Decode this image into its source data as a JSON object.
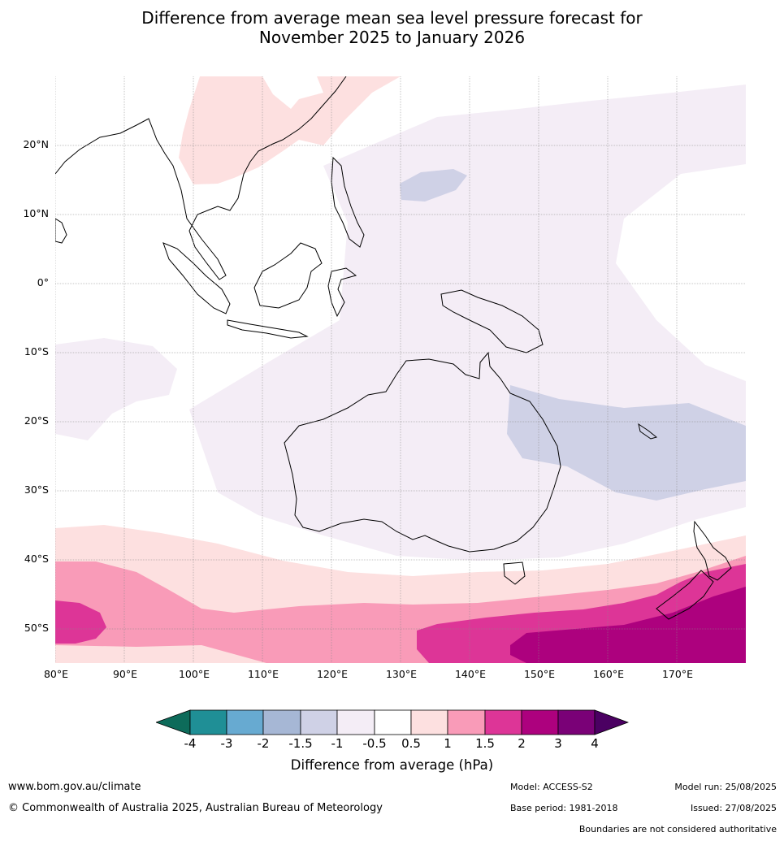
{
  "title": {
    "line1": "Difference from average mean sea level pressure forecast for",
    "line2": "November 2025 to January 2026"
  },
  "map": {
    "lon_range": [
      80,
      180
    ],
    "lat_range": [
      -55,
      30
    ],
    "lat_ticks": [
      {
        "value": 20,
        "label": "20°N"
      },
      {
        "value": 10,
        "label": "10°N"
      },
      {
        "value": 0,
        "label": "0°"
      },
      {
        "value": -10,
        "label": "10°S"
      },
      {
        "value": -20,
        "label": "20°S"
      },
      {
        "value": -30,
        "label": "30°S"
      },
      {
        "value": -40,
        "label": "40°S"
      },
      {
        "value": -50,
        "label": "50°S"
      }
    ],
    "lon_ticks": [
      {
        "value": 80,
        "label": "80°E"
      },
      {
        "value": 90,
        "label": "90°E"
      },
      {
        "value": 100,
        "label": "100°E"
      },
      {
        "value": 110,
        "label": "110°E"
      },
      {
        "value": 120,
        "label": "120°E"
      },
      {
        "value": 130,
        "label": "130°E"
      },
      {
        "value": 140,
        "label": "140°E"
      },
      {
        "value": 150,
        "label": "150°E"
      },
      {
        "value": 160,
        "label": "160°E"
      },
      {
        "value": 170,
        "label": "170°E"
      }
    ]
  },
  "colorbar": {
    "label": "Difference from average (hPa)",
    "tick_labels": [
      "-4",
      "-3",
      "-2",
      "-1.5",
      "-1",
      "-0.5",
      "0.5",
      "1",
      "1.5",
      "2",
      "3",
      "4"
    ],
    "colors": {
      "below_min": "#0d6b5a",
      "m4_m3": "#1f8f96",
      "m3_m2": "#67aad1",
      "m2_m15": "#a6b7d5",
      "m15_m1": "#cfd1e6",
      "m1_m05": "#f4edf6",
      "m05_05": "#ffffff",
      "p05_p1": "#fde0e0",
      "p1_p15": "#f99bb8",
      "p15_p2": "#dd3597",
      "p2_p3": "#ad017e",
      "p3_p4": "#7a0177",
      "above_max": "#4b0062"
    }
  },
  "footer": {
    "website": "www.bom.gov.au/climate",
    "copyright": "© Commonwealth of Australia 2025, Australian Bureau of Meteorology",
    "model": "Model: ACCESS-S2",
    "model_run": "Model run: 25/08/2025",
    "base_period": "Base period: 1981-2018",
    "issued": "Issued: 27/08/2025",
    "disclaimer": "Boundaries are not considered authoritative"
  }
}
